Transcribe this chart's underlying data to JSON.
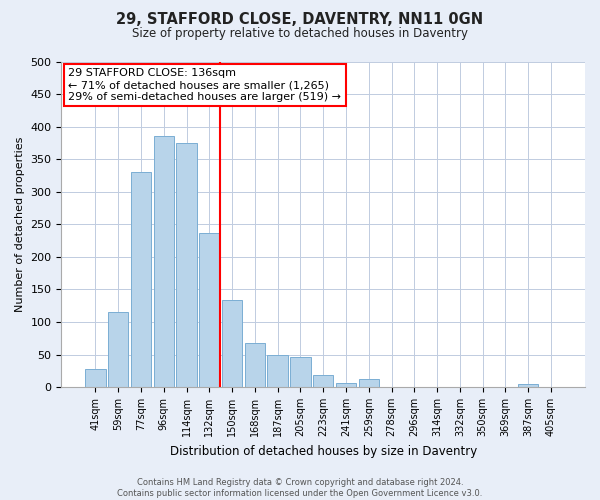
{
  "title": "29, STAFFORD CLOSE, DAVENTRY, NN11 0GN",
  "subtitle": "Size of property relative to detached houses in Daventry",
  "bar_labels": [
    "41sqm",
    "59sqm",
    "77sqm",
    "96sqm",
    "114sqm",
    "132sqm",
    "150sqm",
    "168sqm",
    "187sqm",
    "205sqm",
    "223sqm",
    "241sqm",
    "259sqm",
    "278sqm",
    "296sqm",
    "314sqm",
    "332sqm",
    "350sqm",
    "369sqm",
    "387sqm",
    "405sqm"
  ],
  "bar_heights": [
    27,
    116,
    330,
    385,
    375,
    237,
    133,
    68,
    50,
    46,
    18,
    6,
    13,
    0,
    0,
    0,
    0,
    0,
    0,
    5,
    0
  ],
  "bar_color": "#b8d4ea",
  "bar_edge_color": "#7baed4",
  "vline_x_index": 5,
  "vline_color": "red",
  "annotation_title": "29 STAFFORD CLOSE: 136sqm",
  "annotation_line1": "← 71% of detached houses are smaller (1,265)",
  "annotation_line2": "29% of semi-detached houses are larger (519) →",
  "annotation_box_edge": "red",
  "xlabel": "Distribution of detached houses by size in Daventry",
  "ylabel": "Number of detached properties",
  "ylim": [
    0,
    500
  ],
  "yticks": [
    0,
    50,
    100,
    150,
    200,
    250,
    300,
    350,
    400,
    450,
    500
  ],
  "footer_line1": "Contains HM Land Registry data © Crown copyright and database right 2024.",
  "footer_line2": "Contains public sector information licensed under the Open Government Licence v3.0.",
  "bg_color": "#e8eef8",
  "plot_bg_color": "#ffffff",
  "grid_color": "#c0cce0"
}
